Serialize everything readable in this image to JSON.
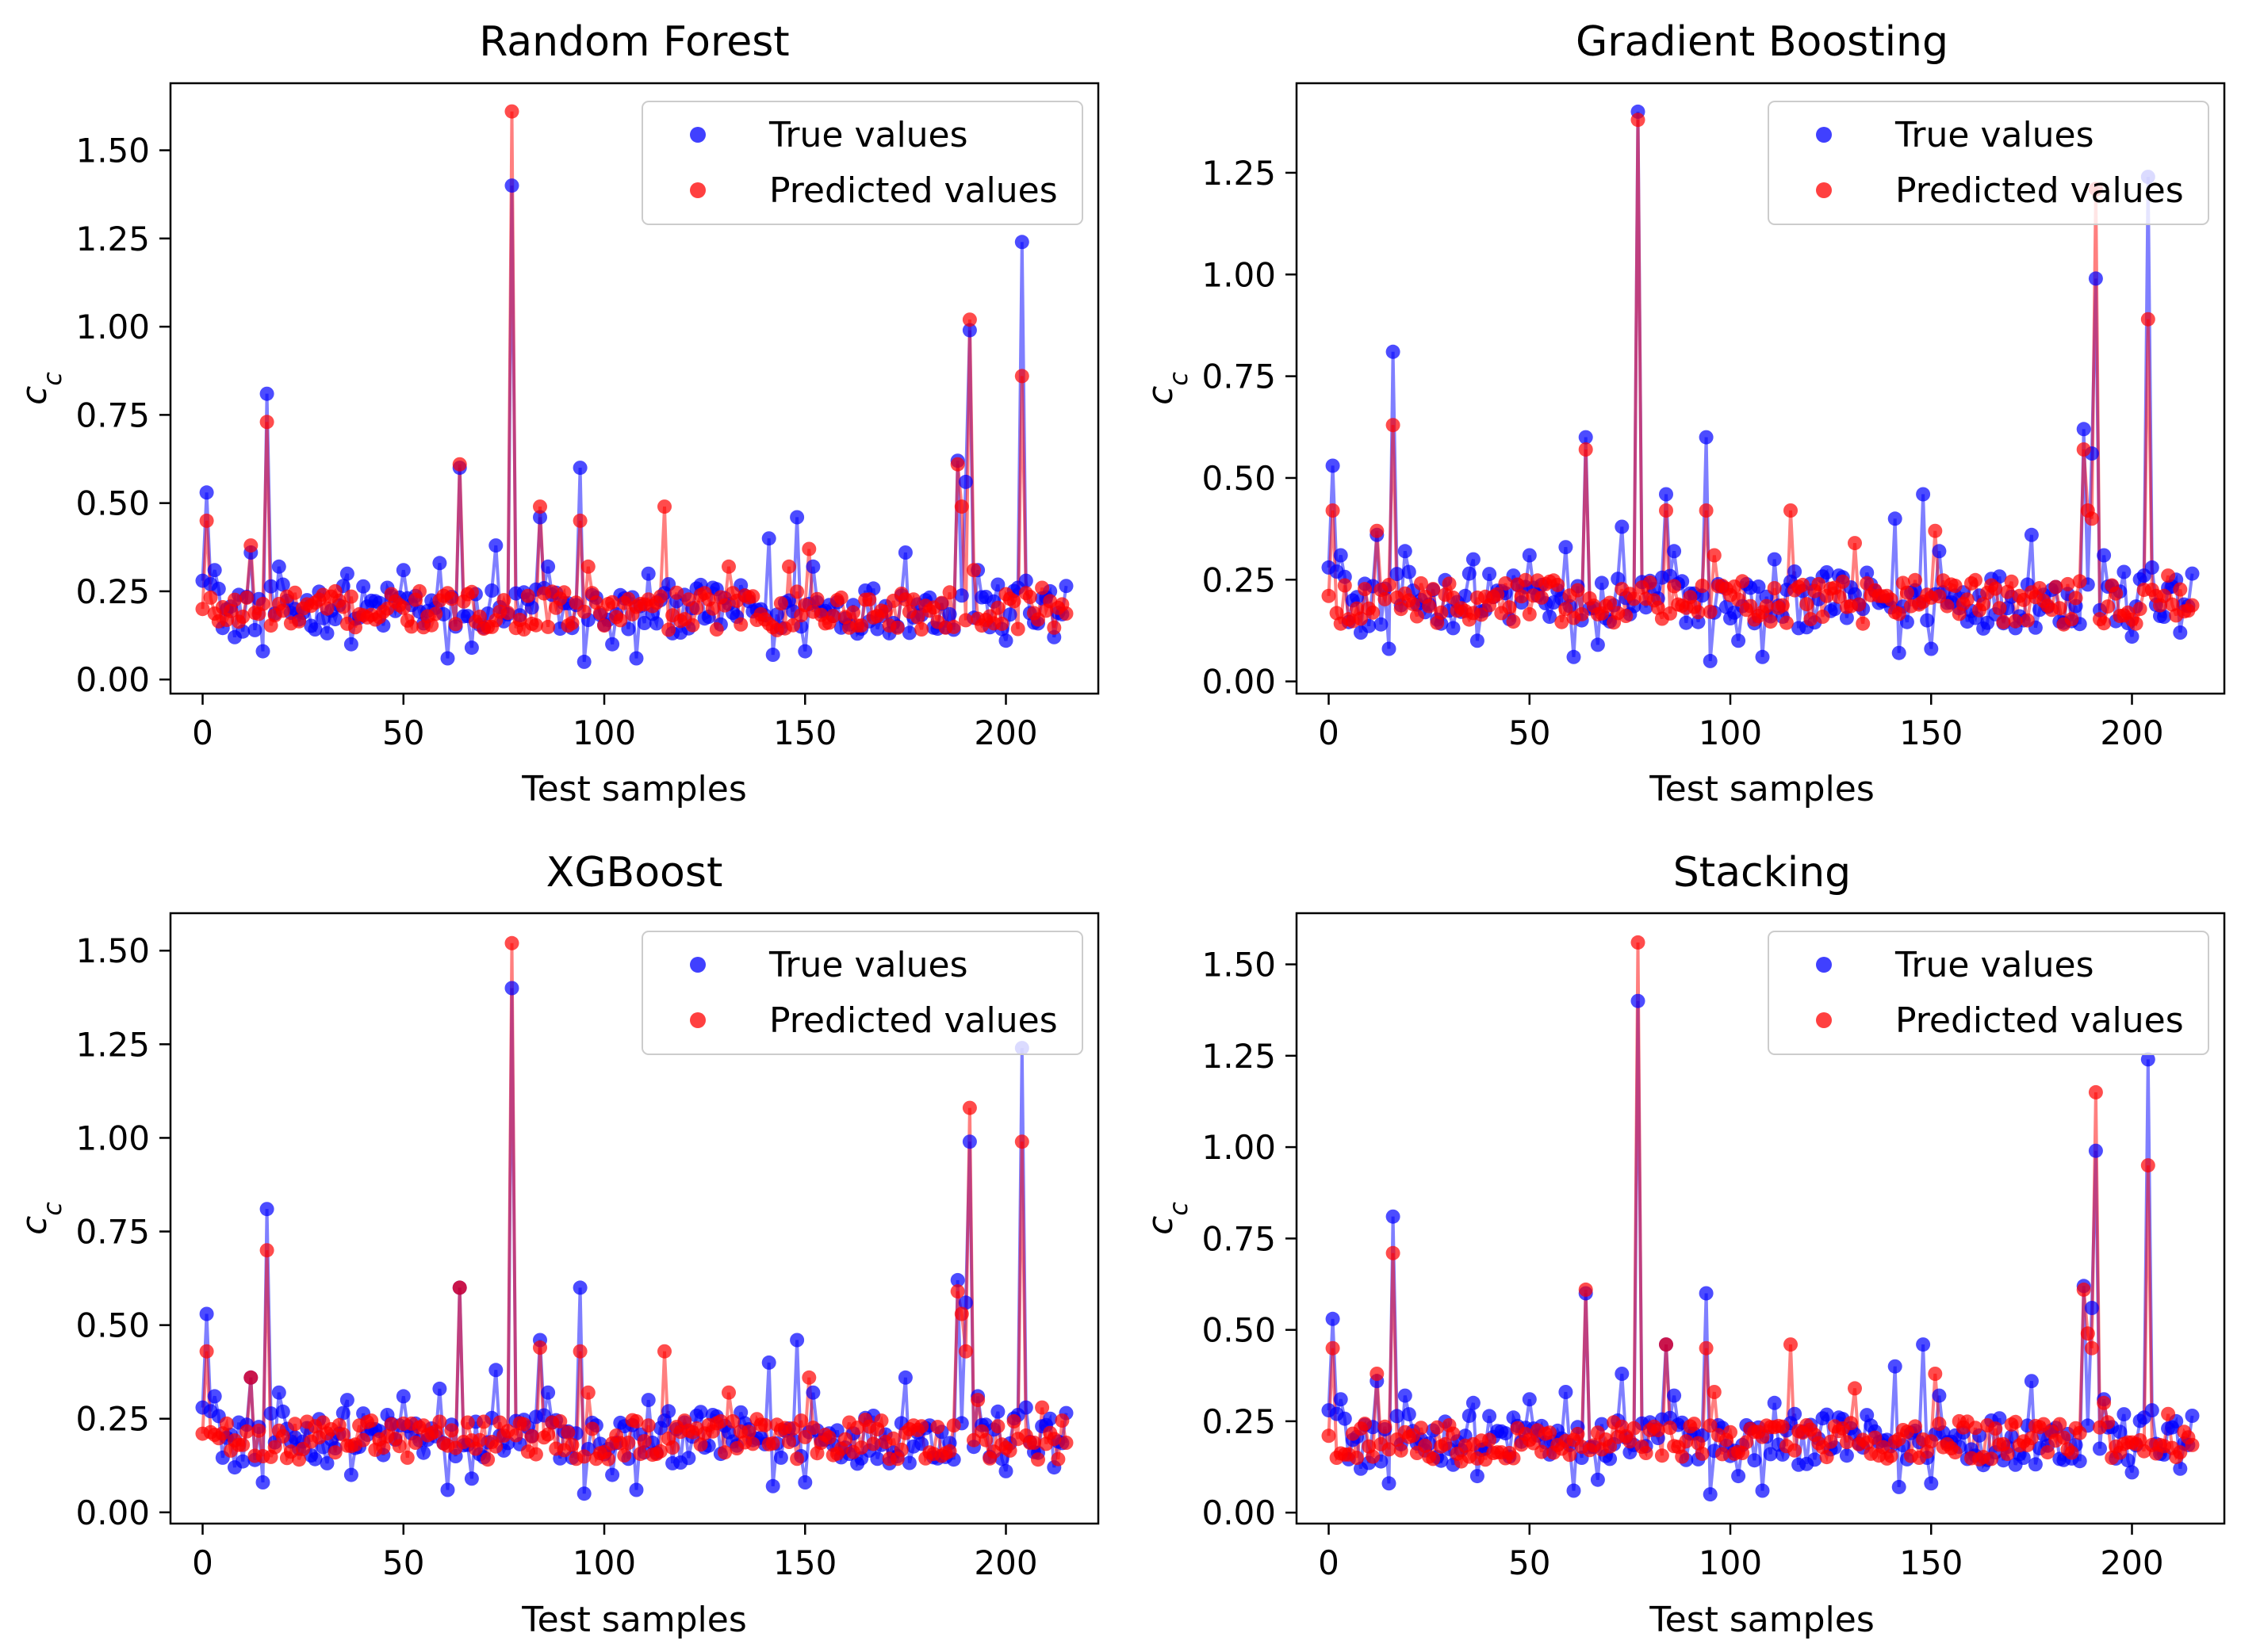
{
  "figure": {
    "panels": [
      {
        "title": "Random Forest",
        "xlabel": "Test samples",
        "ylabel": "c_c"
      },
      {
        "title": "Gradient Boosting",
        "xlabel": "Test samples",
        "ylabel": "c_c"
      },
      {
        "title": "XGBoost",
        "xlabel": "Test samples",
        "ylabel": "c_c"
      },
      {
        "title": "Stacking",
        "xlabel": "Test samples",
        "ylabel": "c_c"
      }
    ],
    "legend": {
      "true_label": "True values",
      "pred_label": "Predicted values"
    }
  },
  "colors": {
    "true": "#0000ff",
    "pred": "#ff0000"
  },
  "chart_data": [
    {
      "type": "line",
      "title": "Random Forest",
      "xlabel": "Test samples",
      "ylabel": "c_c",
      "xlim": [
        -8,
        223
      ],
      "ylim": [
        -0.04,
        1.69
      ],
      "xticks": [
        0,
        50,
        100,
        150,
        200
      ],
      "yticks": [
        0.0,
        0.25,
        0.5,
        0.75,
        1.0,
        1.25,
        1.5
      ],
      "legend_position": "upper right",
      "grid": false,
      "series": [
        {
          "name": "True values",
          "marker": "circle",
          "spikes": [
            [
              0,
              0.28
            ],
            [
              1,
              0.53
            ],
            [
              2,
              0.27
            ],
            [
              3,
              0.31
            ],
            [
              12,
              0.36
            ],
            [
              16,
              0.81
            ],
            [
              19,
              0.32
            ],
            [
              36,
              0.3
            ],
            [
              50,
              0.31
            ],
            [
              59,
              0.33
            ],
            [
              64,
              0.6
            ],
            [
              73,
              0.38
            ],
            [
              77,
              1.4
            ],
            [
              84,
              0.46
            ],
            [
              86,
              0.32
            ],
            [
              94,
              0.6
            ],
            [
              111,
              0.3
            ],
            [
              120,
              0.24
            ],
            [
              141,
              0.4
            ],
            [
              148,
              0.46
            ],
            [
              152,
              0.32
            ],
            [
              175,
              0.36
            ],
            [
              188,
              0.62
            ],
            [
              190,
              0.56
            ],
            [
              191,
              0.99
            ],
            [
              193,
              0.31
            ],
            [
              204,
              1.24
            ],
            [
              205,
              0.28
            ]
          ],
          "dips": [
            [
              8,
              0.12
            ],
            [
              15,
              0.08
            ],
            [
              37,
              0.1
            ],
            [
              61,
              0.06
            ],
            [
              67,
              0.09
            ],
            [
              95,
              0.05
            ],
            [
              102,
              0.1
            ],
            [
              108,
              0.06
            ],
            [
              142,
              0.07
            ],
            [
              150,
              0.08
            ],
            [
              200,
              0.11
            ],
            [
              212,
              0.12
            ]
          ]
        },
        {
          "name": "Predicted values",
          "marker": "circle",
          "spikes": [
            [
              0,
              0.2
            ],
            [
              1,
              0.45
            ],
            [
              12,
              0.38
            ],
            [
              16,
              0.73
            ],
            [
              33,
              0.25
            ],
            [
              64,
              0.61
            ],
            [
              77,
              1.61
            ],
            [
              84,
              0.49
            ],
            [
              94,
              0.45
            ],
            [
              96,
              0.32
            ],
            [
              115,
              0.49
            ],
            [
              131,
              0.32
            ],
            [
              146,
              0.32
            ],
            [
              151,
              0.37
            ],
            [
              188,
              0.61
            ],
            [
              189,
              0.49
            ],
            [
              191,
              1.02
            ],
            [
              192,
              0.31
            ],
            [
              204,
              0.86
            ],
            [
              209,
              0.26
            ]
          ],
          "dips": []
        }
      ]
    },
    {
      "type": "line",
      "title": "Gradient Boosting",
      "xlabel": "Test samples",
      "ylabel": "c_c",
      "xlim": [
        -8,
        223
      ],
      "ylim": [
        -0.03,
        1.47
      ],
      "xticks": [
        0,
        50,
        100,
        150,
        200
      ],
      "yticks": [
        0.0,
        0.25,
        0.5,
        0.75,
        1.0,
        1.25
      ],
      "legend_position": "upper right",
      "grid": false,
      "series": [
        {
          "name": "True values",
          "marker": "circle",
          "spikes": [
            [
              0,
              0.28
            ],
            [
              1,
              0.53
            ],
            [
              2,
              0.27
            ],
            [
              3,
              0.31
            ],
            [
              12,
              0.36
            ],
            [
              16,
              0.81
            ],
            [
              19,
              0.32
            ],
            [
              36,
              0.3
            ],
            [
              50,
              0.31
            ],
            [
              59,
              0.33
            ],
            [
              64,
              0.6
            ],
            [
              73,
              0.38
            ],
            [
              77,
              1.4
            ],
            [
              84,
              0.46
            ],
            [
              86,
              0.32
            ],
            [
              94,
              0.6
            ],
            [
              111,
              0.3
            ],
            [
              120,
              0.24
            ],
            [
              141,
              0.4
            ],
            [
              148,
              0.46
            ],
            [
              152,
              0.32
            ],
            [
              175,
              0.36
            ],
            [
              188,
              0.62
            ],
            [
              190,
              0.56
            ],
            [
              191,
              0.99
            ],
            [
              193,
              0.31
            ],
            [
              204,
              1.24
            ],
            [
              205,
              0.28
            ]
          ],
          "dips": [
            [
              8,
              0.12
            ],
            [
              15,
              0.08
            ],
            [
              37,
              0.1
            ],
            [
              61,
              0.06
            ],
            [
              67,
              0.09
            ],
            [
              95,
              0.05
            ],
            [
              102,
              0.1
            ],
            [
              108,
              0.06
            ],
            [
              142,
              0.07
            ],
            [
              150,
              0.08
            ],
            [
              200,
              0.11
            ],
            [
              212,
              0.12
            ]
          ]
        },
        {
          "name": "Predicted values",
          "marker": "circle",
          "spikes": [
            [
              0,
              0.21
            ],
            [
              1,
              0.42
            ],
            [
              12,
              0.37
            ],
            [
              16,
              0.63
            ],
            [
              64,
              0.57
            ],
            [
              77,
              1.38
            ],
            [
              84,
              0.42
            ],
            [
              94,
              0.42
            ],
            [
              96,
              0.31
            ],
            [
              115,
              0.42
            ],
            [
              131,
              0.34
            ],
            [
              151,
              0.37
            ],
            [
              188,
              0.57
            ],
            [
              189,
              0.42
            ],
            [
              190,
              0.4
            ],
            [
              191,
              1.21
            ],
            [
              204,
              0.89
            ],
            [
              209,
              0.26
            ]
          ],
          "dips": []
        }
      ]
    },
    {
      "type": "line",
      "title": "XGBoost",
      "xlabel": "Test samples",
      "ylabel": "c_c",
      "xlim": [
        -8,
        223
      ],
      "ylim": [
        -0.03,
        1.6
      ],
      "xticks": [
        0,
        50,
        100,
        150,
        200
      ],
      "yticks": [
        0.0,
        0.25,
        0.5,
        0.75,
        1.0,
        1.25,
        1.5
      ],
      "legend_position": "upper right",
      "grid": false,
      "series": [
        {
          "name": "True values",
          "marker": "circle",
          "spikes": [
            [
              0,
              0.28
            ],
            [
              1,
              0.53
            ],
            [
              2,
              0.27
            ],
            [
              3,
              0.31
            ],
            [
              12,
              0.36
            ],
            [
              16,
              0.81
            ],
            [
              19,
              0.32
            ],
            [
              36,
              0.3
            ],
            [
              50,
              0.31
            ],
            [
              59,
              0.33
            ],
            [
              64,
              0.6
            ],
            [
              73,
              0.38
            ],
            [
              77,
              1.4
            ],
            [
              84,
              0.46
            ],
            [
              86,
              0.32
            ],
            [
              94,
              0.6
            ],
            [
              111,
              0.3
            ],
            [
              120,
              0.24
            ],
            [
              141,
              0.4
            ],
            [
              148,
              0.46
            ],
            [
              152,
              0.32
            ],
            [
              175,
              0.36
            ],
            [
              188,
              0.62
            ],
            [
              190,
              0.56
            ],
            [
              191,
              0.99
            ],
            [
              193,
              0.31
            ],
            [
              204,
              1.24
            ],
            [
              205,
              0.28
            ]
          ],
          "dips": [
            [
              8,
              0.12
            ],
            [
              15,
              0.08
            ],
            [
              37,
              0.1
            ],
            [
              61,
              0.06
            ],
            [
              67,
              0.09
            ],
            [
              95,
              0.05
            ],
            [
              102,
              0.1
            ],
            [
              108,
              0.06
            ],
            [
              142,
              0.07
            ],
            [
              150,
              0.08
            ],
            [
              200,
              0.11
            ],
            [
              212,
              0.12
            ]
          ]
        },
        {
          "name": "Predicted values",
          "marker": "circle",
          "spikes": [
            [
              0,
              0.21
            ],
            [
              1,
              0.43
            ],
            [
              12,
              0.36
            ],
            [
              16,
              0.7
            ],
            [
              64,
              0.6
            ],
            [
              77,
              1.52
            ],
            [
              84,
              0.44
            ],
            [
              94,
              0.43
            ],
            [
              96,
              0.32
            ],
            [
              115,
              0.43
            ],
            [
              131,
              0.32
            ],
            [
              151,
              0.36
            ],
            [
              188,
              0.59
            ],
            [
              189,
              0.53
            ],
            [
              190,
              0.43
            ],
            [
              191,
              1.08
            ],
            [
              193,
              0.3
            ],
            [
              204,
              0.99
            ],
            [
              209,
              0.28
            ]
          ],
          "dips": []
        }
      ]
    },
    {
      "type": "line",
      "title": "Stacking",
      "xlabel": "Test samples",
      "ylabel": "c_c",
      "xlim": [
        -8,
        223
      ],
      "ylim": [
        -0.03,
        1.64
      ],
      "xticks": [
        0,
        50,
        100,
        150,
        200
      ],
      "yticks": [
        0.0,
        0.25,
        0.5,
        0.75,
        1.0,
        1.25,
        1.5
      ],
      "legend_position": "upper right",
      "grid": false,
      "series": [
        {
          "name": "True values",
          "marker": "circle",
          "spikes": [
            [
              0,
              0.28
            ],
            [
              1,
              0.53
            ],
            [
              2,
              0.27
            ],
            [
              3,
              0.31
            ],
            [
              12,
              0.36
            ],
            [
              16,
              0.81
            ],
            [
              19,
              0.32
            ],
            [
              36,
              0.3
            ],
            [
              50,
              0.31
            ],
            [
              59,
              0.33
            ],
            [
              64,
              0.6
            ],
            [
              73,
              0.38
            ],
            [
              77,
              1.4
            ],
            [
              84,
              0.46
            ],
            [
              86,
              0.32
            ],
            [
              94,
              0.6
            ],
            [
              111,
              0.3
            ],
            [
              120,
              0.24
            ],
            [
              141,
              0.4
            ],
            [
              148,
              0.46
            ],
            [
              152,
              0.32
            ],
            [
              175,
              0.36
            ],
            [
              188,
              0.62
            ],
            [
              190,
              0.56
            ],
            [
              191,
              0.99
            ],
            [
              193,
              0.31
            ],
            [
              204,
              1.24
            ],
            [
              205,
              0.28
            ]
          ],
          "dips": [
            [
              8,
              0.12
            ],
            [
              15,
              0.08
            ],
            [
              37,
              0.1
            ],
            [
              61,
              0.06
            ],
            [
              67,
              0.09
            ],
            [
              95,
              0.05
            ],
            [
              102,
              0.1
            ],
            [
              108,
              0.06
            ],
            [
              142,
              0.07
            ],
            [
              150,
              0.08
            ],
            [
              200,
              0.11
            ],
            [
              212,
              0.12
            ]
          ]
        },
        {
          "name": "Predicted values",
          "marker": "circle",
          "spikes": [
            [
              0,
              0.21
            ],
            [
              1,
              0.45
            ],
            [
              12,
              0.38
            ],
            [
              16,
              0.71
            ],
            [
              64,
              0.61
            ],
            [
              77,
              1.56
            ],
            [
              84,
              0.46
            ],
            [
              94,
              0.45
            ],
            [
              96,
              0.33
            ],
            [
              115,
              0.46
            ],
            [
              131,
              0.34
            ],
            [
              151,
              0.38
            ],
            [
              188,
              0.61
            ],
            [
              189,
              0.49
            ],
            [
              190,
              0.45
            ],
            [
              191,
              1.15
            ],
            [
              193,
              0.3
            ],
            [
              204,
              0.95
            ],
            [
              209,
              0.27
            ]
          ],
          "dips": []
        }
      ]
    }
  ]
}
